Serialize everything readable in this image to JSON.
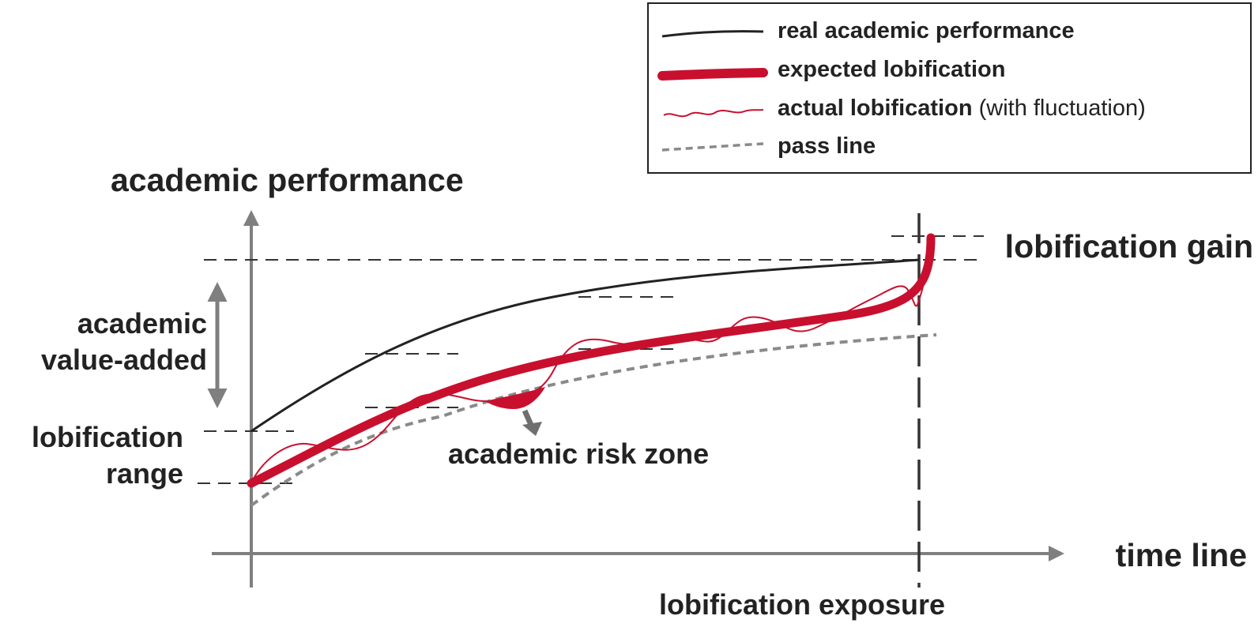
{
  "diagram": {
    "title_y_axis": "academic performance",
    "x_axis_label": "time line",
    "labels": {
      "academic_value_added_line1": "academic",
      "academic_value_added_line2": "value-added",
      "lobification_range_line1": "lobification",
      "lobification_range_line2": "range",
      "academic_risk_zone": "academic risk zone",
      "lobification_gain": "lobification gain",
      "lobification_exposure": "lobification exposure"
    },
    "legend": {
      "real": "real academic performance",
      "expected": "expected lobification",
      "actual": "actual lobification",
      "actual_note": " (with fluctuation)",
      "pass": "pass line"
    },
    "colors": {
      "real_line": "#222222",
      "lobification": "#c8102e",
      "pass_line": "#8a8a8a",
      "axis": "#7f7f7f",
      "guides": "#333333",
      "text": "#222222"
    }
  }
}
